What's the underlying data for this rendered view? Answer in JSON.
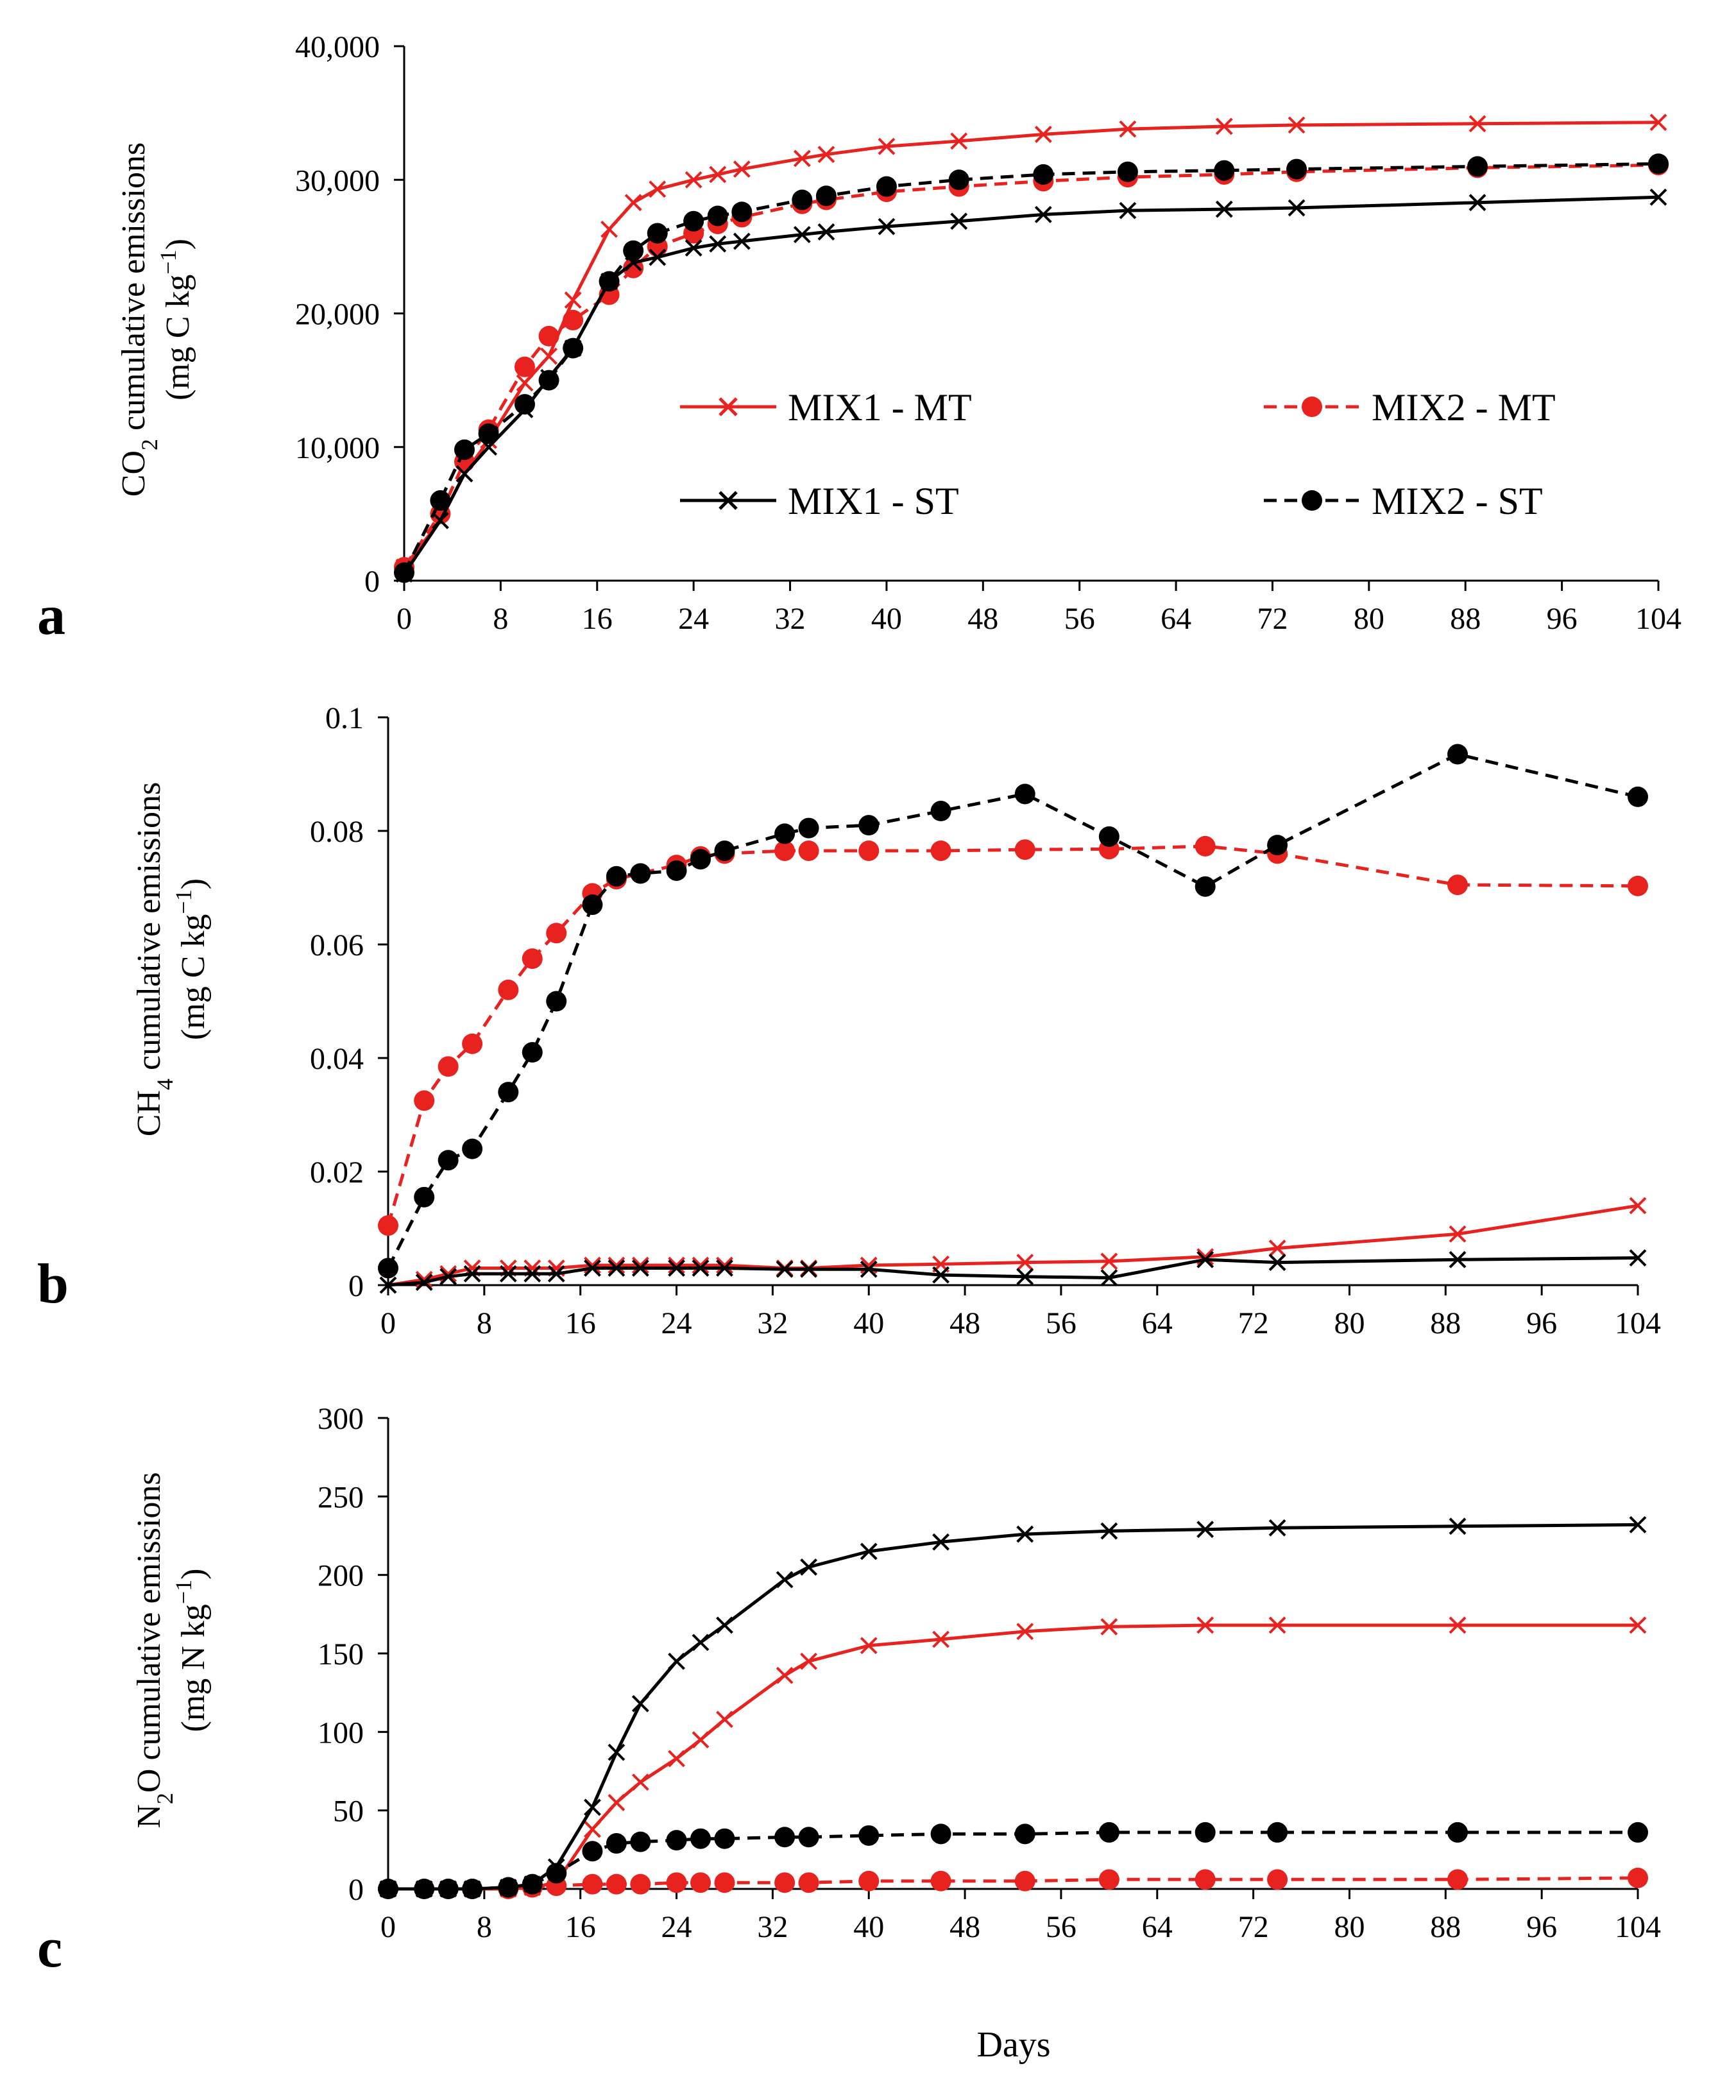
{
  "figure": {
    "xlabel": "Days",
    "legend": {
      "placement": "center-right of panel a",
      "entries": [
        "MIX1 - MT",
        "MIX2 - MT",
        "MIX1 - ST",
        "MIX2 - ST"
      ]
    }
  },
  "chart_data": [
    {
      "type": "line",
      "panel": "a",
      "ylabel_lines": [
        "CO2 cumulative emissions",
        "(mg C kg−1)"
      ],
      "ylabel_parts": {
        "l1_pre": "CO",
        "l1_sub": "2",
        "l1_post": " cumulative emissions",
        "l2_pre": "(mg C kg",
        "l2_sup": "−1",
        "l2_post": ")"
      },
      "xlabel": "",
      "xlim": [
        0,
        104
      ],
      "ylim": [
        0,
        40000
      ],
      "xticks": [
        "0",
        "8",
        "16",
        "24",
        "32",
        "40",
        "48",
        "56",
        "64",
        "72",
        "80",
        "88",
        "96",
        "104"
      ],
      "yticks": [
        "0",
        "10,000",
        "20,000",
        "30,000",
        "40,000"
      ],
      "series": [
        {
          "name": "MIX1 - MT",
          "color": "#e8231f",
          "dashed": false,
          "marker": "x",
          "x": [
            0,
            3,
            5,
            7,
            10,
            12,
            14,
            17,
            19,
            21,
            24,
            26,
            28,
            33,
            35,
            40,
            46,
            53,
            60,
            68,
            74,
            89,
            104
          ],
          "y": [
            1000,
            4500,
            8000,
            10500,
            14800,
            16800,
            21000,
            26300,
            28300,
            29300,
            30000,
            30400,
            30800,
            31600,
            31900,
            32500,
            32900,
            33400,
            33800,
            34000,
            34100,
            34200,
            34300
          ]
        },
        {
          "name": "MIX2 - MT",
          "color": "#e8231f",
          "dashed": true,
          "marker": "dot",
          "x": [
            0,
            3,
            5,
            7,
            10,
            12,
            14,
            17,
            19,
            21,
            24,
            26,
            28,
            33,
            35,
            40,
            46,
            53,
            60,
            68,
            74,
            89,
            104
          ],
          "y": [
            1000,
            5000,
            8900,
            11300,
            16000,
            18300,
            19500,
            21400,
            23400,
            25000,
            26000,
            26700,
            27200,
            28200,
            28500,
            29100,
            29500,
            29900,
            30200,
            30400,
            30600,
            30900,
            31100
          ]
        },
        {
          "name": "MIX1 - ST",
          "color": "#000000",
          "dashed": false,
          "marker": "x",
          "x": [
            0,
            3,
            5,
            7,
            10,
            12,
            14,
            17,
            19,
            21,
            24,
            26,
            28,
            33,
            35,
            40,
            46,
            53,
            60,
            68,
            74,
            89,
            104
          ],
          "y": [
            500,
            4500,
            8000,
            10000,
            12800,
            15200,
            17400,
            22400,
            23800,
            24200,
            24900,
            25200,
            25400,
            25900,
            26100,
            26500,
            26900,
            27400,
            27700,
            27800,
            27900,
            28300,
            28700
          ]
        },
        {
          "name": "MIX2 - ST",
          "color": "#000000",
          "dashed": true,
          "marker": "dot",
          "x": [
            0,
            3,
            5,
            7,
            10,
            12,
            14,
            17,
            19,
            21,
            24,
            26,
            28,
            33,
            35,
            40,
            46,
            53,
            60,
            68,
            74,
            89,
            104
          ],
          "y": [
            600,
            6000,
            9800,
            11000,
            13200,
            15000,
            17400,
            22400,
            24700,
            26000,
            26900,
            27300,
            27600,
            28500,
            28800,
            29500,
            30000,
            30400,
            30600,
            30700,
            30800,
            31000,
            31200
          ]
        }
      ]
    },
    {
      "type": "line",
      "panel": "b",
      "ylabel_lines": [
        "CH4 cumulative emissions",
        "(mg C kg−1)"
      ],
      "ylabel_parts": {
        "l1_pre": "CH",
        "l1_sub": "4",
        "l1_post": " cumulative emissions",
        "l2_pre": "(mg C kg",
        "l2_sup": "−1",
        "l2_post": ")"
      },
      "xlabel": "",
      "xlim": [
        0,
        104
      ],
      "ylim": [
        0,
        0.1
      ],
      "xticks": [
        "0",
        "8",
        "16",
        "24",
        "32",
        "40",
        "48",
        "56",
        "64",
        "72",
        "80",
        "88",
        "96",
        "104"
      ],
      "yticks": [
        "0",
        "0.02",
        "0.04",
        "0.06",
        "0.08",
        "0.1"
      ],
      "series": [
        {
          "name": "MIX1 - MT",
          "color": "#e8231f",
          "dashed": false,
          "marker": "x",
          "x": [
            0,
            3,
            5,
            7,
            10,
            12,
            14,
            17,
            19,
            21,
            24,
            26,
            28,
            33,
            35,
            40,
            46,
            53,
            60,
            68,
            74,
            89,
            104
          ],
          "y": [
            0.0,
            0.001,
            0.002,
            0.003,
            0.003,
            0.003,
            0.003,
            0.0035,
            0.0035,
            0.0035,
            0.0035,
            0.0035,
            0.0035,
            0.003,
            0.003,
            0.0035,
            0.0037,
            0.004,
            0.0042,
            0.005,
            0.0065,
            0.009,
            0.014
          ]
        },
        {
          "name": "MIX2 - MT",
          "color": "#e8231f",
          "dashed": true,
          "marker": "dot",
          "x": [
            0,
            3,
            5,
            7,
            10,
            12,
            14,
            17,
            19,
            21,
            24,
            26,
            28,
            33,
            35,
            40,
            46,
            53,
            60,
            68,
            74,
            89,
            104
          ],
          "y": [
            0.0105,
            0.0325,
            0.0385,
            0.0425,
            0.052,
            0.0575,
            0.062,
            0.069,
            0.0715,
            0.0725,
            0.074,
            0.0755,
            0.076,
            0.0765,
            0.0765,
            0.0765,
            0.0765,
            0.0767,
            0.0768,
            0.0773,
            0.076,
            0.0705,
            0.0703
          ]
        },
        {
          "name": "MIX1 - ST",
          "color": "#000000",
          "dashed": false,
          "marker": "x",
          "x": [
            0,
            3,
            5,
            7,
            10,
            12,
            14,
            17,
            19,
            21,
            24,
            26,
            28,
            33,
            35,
            40,
            46,
            53,
            60,
            68,
            74,
            89,
            104
          ],
          "y": [
            0.0,
            0.0005,
            0.0015,
            0.002,
            0.002,
            0.002,
            0.002,
            0.003,
            0.003,
            0.003,
            0.003,
            0.003,
            0.003,
            0.0028,
            0.0028,
            0.0028,
            0.0018,
            0.0015,
            0.0013,
            0.0045,
            0.004,
            0.0045,
            0.0048
          ]
        },
        {
          "name": "MIX2 - ST",
          "color": "#000000",
          "dashed": true,
          "marker": "dot",
          "x": [
            0,
            3,
            5,
            7,
            10,
            12,
            14,
            17,
            19,
            21,
            24,
            26,
            28,
            33,
            35,
            40,
            46,
            53,
            60,
            68,
            74,
            89,
            104
          ],
          "y": [
            0.003,
            0.0155,
            0.022,
            0.024,
            0.034,
            0.041,
            0.05,
            0.067,
            0.072,
            0.0725,
            0.073,
            0.075,
            0.0765,
            0.0795,
            0.0805,
            0.081,
            0.0835,
            0.0865,
            0.079,
            0.0702,
            0.0775,
            0.0935,
            0.086
          ]
        }
      ]
    },
    {
      "type": "line",
      "panel": "c",
      "ylabel_lines": [
        "N2O cumulative emissions",
        "(mg N kg−1)"
      ],
      "ylabel_parts": {
        "l1_pre": "N",
        "l1_sub": "2",
        "l1_post": "O cumulative emissions",
        "l2_pre": "(mg N kg",
        "l2_sup": "−1",
        "l2_post": ")"
      },
      "xlabel": "Days",
      "xlim": [
        0,
        104
      ],
      "ylim": [
        0,
        300
      ],
      "xticks": [
        "0",
        "8",
        "16",
        "24",
        "32",
        "40",
        "48",
        "56",
        "64",
        "72",
        "80",
        "88",
        "96",
        "104"
      ],
      "yticks": [
        "0",
        "50",
        "100",
        "150",
        "200",
        "250",
        "300"
      ],
      "series": [
        {
          "name": "MIX1 - MT",
          "color": "#e8231f",
          "dashed": false,
          "marker": "x",
          "x": [
            0,
            3,
            5,
            7,
            10,
            12,
            14,
            17,
            19,
            21,
            24,
            26,
            28,
            33,
            35,
            40,
            46,
            53,
            60,
            68,
            74,
            89,
            104
          ],
          "y": [
            0,
            0,
            0,
            0,
            0,
            1,
            4,
            38,
            55,
            68,
            83,
            95,
            108,
            136,
            145,
            155,
            159,
            164,
            167,
            168,
            168,
            168,
            168
          ]
        },
        {
          "name": "MIX2 - MT",
          "color": "#e8231f",
          "dashed": true,
          "marker": "dot",
          "x": [
            0,
            3,
            5,
            7,
            10,
            12,
            14,
            17,
            19,
            21,
            24,
            26,
            28,
            33,
            35,
            40,
            46,
            53,
            60,
            68,
            74,
            89,
            104
          ],
          "y": [
            0,
            0,
            0,
            0,
            0,
            1,
            2,
            3,
            3,
            3,
            4,
            4,
            4,
            4,
            4,
            5,
            5,
            5,
            6,
            6,
            6,
            6,
            7
          ]
        },
        {
          "name": "MIX1 - ST",
          "color": "#000000",
          "dashed": false,
          "marker": "x",
          "x": [
            0,
            3,
            5,
            7,
            10,
            12,
            14,
            17,
            19,
            21,
            24,
            26,
            28,
            33,
            35,
            40,
            46,
            53,
            60,
            68,
            74,
            89,
            104
          ],
          "y": [
            0,
            0,
            0,
            0,
            1,
            3,
            14,
            52,
            87,
            118,
            145,
            157,
            168,
            197,
            205,
            215,
            221,
            226,
            228,
            229,
            230,
            231,
            232
          ]
        },
        {
          "name": "MIX2 - ST",
          "color": "#000000",
          "dashed": true,
          "marker": "dot",
          "x": [
            0,
            3,
            5,
            7,
            10,
            12,
            14,
            17,
            19,
            21,
            24,
            26,
            28,
            33,
            35,
            40,
            46,
            53,
            60,
            68,
            74,
            89,
            104
          ],
          "y": [
            0,
            0,
            0,
            0,
            1,
            3,
            10,
            24,
            29,
            30,
            31,
            32,
            32,
            33,
            33,
            34,
            35,
            35,
            36,
            36,
            36,
            36,
            36
          ]
        }
      ]
    }
  ]
}
